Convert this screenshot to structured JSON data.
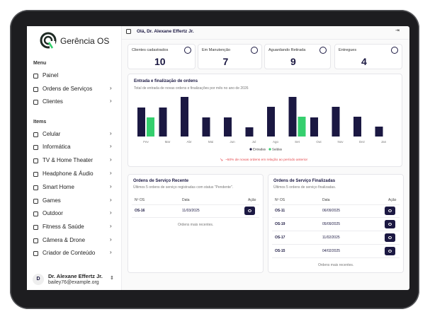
{
  "brand": "Gerência OS",
  "sidebar": {
    "menu_label": "Menu",
    "menu": [
      {
        "label": "Painel",
        "has_submenu": false
      },
      {
        "label": "Ordens de Serviços",
        "has_submenu": true
      },
      {
        "label": "Clientes",
        "has_submenu": true
      }
    ],
    "items_label": "Items",
    "items": [
      {
        "label": "Celular",
        "has_submenu": true
      },
      {
        "label": "Informática",
        "has_submenu": true
      },
      {
        "label": "TV & Home Theater",
        "has_submenu": true
      },
      {
        "label": "Headphone & Áudio",
        "has_submenu": true
      },
      {
        "label": "Smart Home",
        "has_submenu": true
      },
      {
        "label": "Games",
        "has_submenu": true
      },
      {
        "label": "Outdoor",
        "has_submenu": true
      },
      {
        "label": "Fitness & Saúde",
        "has_submenu": true
      },
      {
        "label": "Câmera & Drone",
        "has_submenu": true
      },
      {
        "label": "Criador de Conteúdo",
        "has_submenu": true
      }
    ],
    "user": {
      "initial": "D",
      "name": "Dr. Alexane Effertz Jr.",
      "email": "bailey76@example.org"
    }
  },
  "header": {
    "greeting": "Olá, Dr. Alexane Effertz Jr."
  },
  "stats": [
    {
      "label": "Clientes cadastrados",
      "value": 10
    },
    {
      "label": "Em Manutenção",
      "value": 7
    },
    {
      "label": "Aguardando Retirada",
      "value": 9
    },
    {
      "label": "Entregues",
      "value": 4
    }
  ],
  "chart_data": {
    "type": "bar",
    "title": "Entrada e finalização de ordens",
    "subtitle": "Total de entrada de novas ordens e finalizações por mês no ano de 2026",
    "categories": [
      "Fev",
      "Mar",
      "Abr",
      "Mai",
      "Jun",
      "Jul",
      "Ago",
      "Set",
      "Out",
      "Nov",
      "Dez",
      "Jan"
    ],
    "series": [
      {
        "name": "Entradas",
        "color": "#1b1842",
        "values": [
          41,
          41,
          56,
          27,
          27,
          13,
          42,
          56,
          27,
          42,
          28,
          14
        ]
      },
      {
        "name": "Saídas",
        "color": "#35cf6e",
        "values": [
          27,
          null,
          null,
          null,
          null,
          null,
          null,
          28,
          null,
          null,
          null,
          null
        ]
      }
    ],
    "ylim": [
      0,
      60
    ],
    "annotation": "~50% de novas ordens em relação ao período anterior"
  },
  "recent": {
    "title": "Ordens de Serviço Recente",
    "subtitle": "Últimos 5 ordens de serviço registradas com status \"Pendente\".",
    "columns": [
      "Nº OS",
      "Data",
      "Ação"
    ],
    "rows": [
      [
        "OS-16",
        "11/03/2025"
      ]
    ],
    "footer": "Ordens mais recentes."
  },
  "finished": {
    "title": "Ordens de Serviço Finalizadas",
    "subtitle": "Últimos 5 ordens de serviço finalizadas.",
    "columns": [
      "Nº OS",
      "Data",
      "Ação"
    ],
    "rows": [
      [
        "OS-11",
        "06/09/2025"
      ],
      [
        "OS-19",
        "05/09/2025"
      ],
      [
        "OS-17",
        "11/02/2025"
      ],
      [
        "OS-15",
        "04/02/2025"
      ]
    ],
    "footer": "Ordens mais recentes."
  }
}
